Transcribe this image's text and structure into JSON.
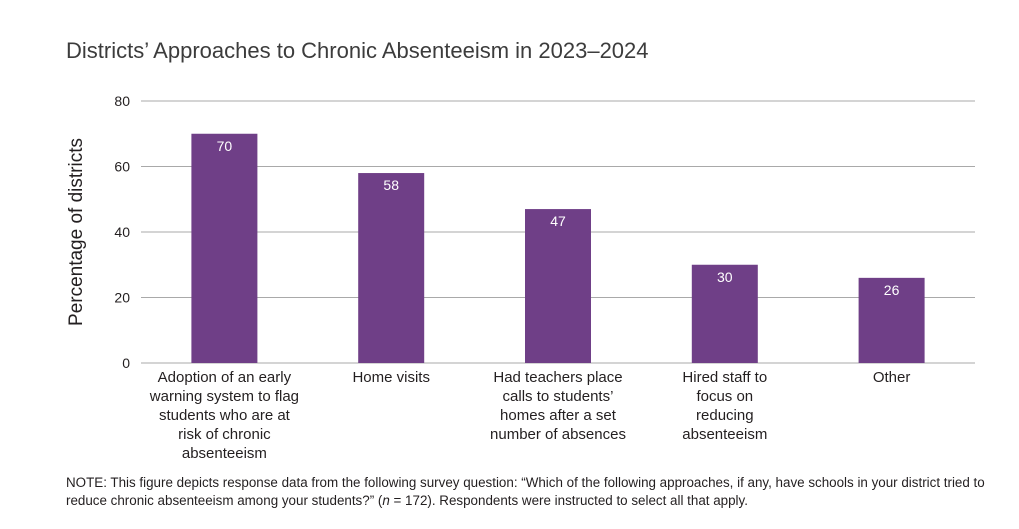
{
  "chart_data": {
    "type": "bar",
    "title": "Districts’ Approaches to Chronic Absenteeism in 2023–2024",
    "xlabel": "",
    "ylabel": "Percentage of districts",
    "ylim": [
      0,
      80
    ],
    "yticks": [
      0,
      20,
      40,
      60,
      80
    ],
    "grid": true,
    "categories": [
      [
        "Adoption of an early",
        "warning system to flag",
        "students who are at",
        "risk of chronic",
        "absenteeism"
      ],
      [
        "Home visits"
      ],
      [
        "Had teachers place",
        "calls to students’",
        "homes after a set",
        "number of absences"
      ],
      [
        "Hired staff to",
        "focus on",
        "reducing",
        "absenteeism"
      ],
      [
        "Other"
      ]
    ],
    "values": [
      70,
      58,
      47,
      30,
      26
    ],
    "bar_color": "#6f3f87",
    "data_label_color": "#ffffff"
  },
  "note": {
    "part1": "NOTE: This figure depicts response data from the following survey question: “Which of the following approaches, if any, have schools in your district tried to reduce chronic absenteeism among your students?” (",
    "n_symbol": "n",
    "part2": " = 172). Respondents were instructed to select all that apply."
  }
}
